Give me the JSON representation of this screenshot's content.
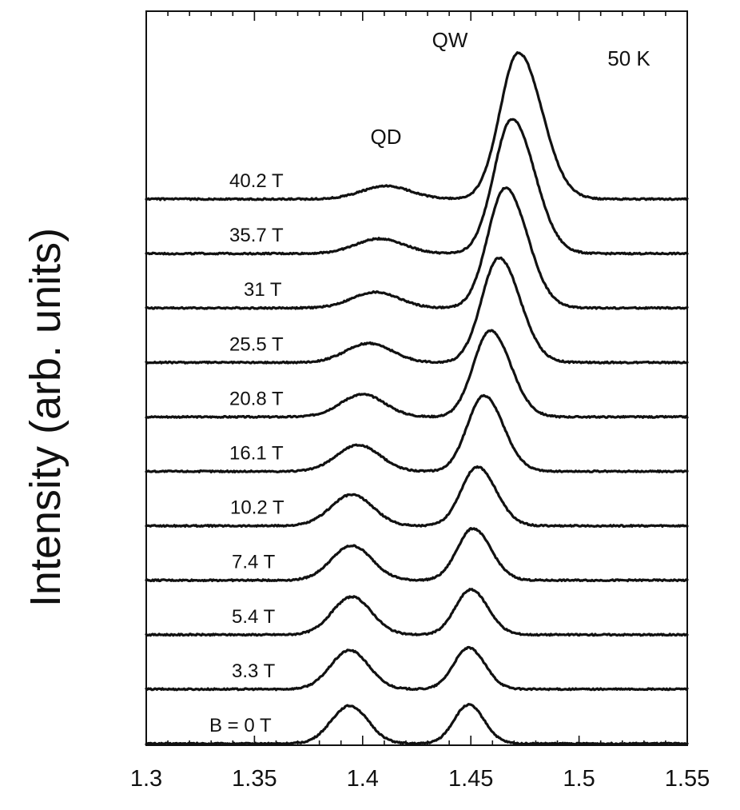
{
  "chart_data": {
    "type": "line",
    "title": "",
    "xlabel": "",
    "ylabel": "Intensity (arb. units)",
    "xlim": [
      1.3,
      1.55
    ],
    "x_ticks": [
      "1.3",
      "1.35",
      "1.4",
      "1.45",
      "1.5",
      "1.55"
    ],
    "y_ticks_labeled": false,
    "temperature_label": "50 K",
    "peak_labels": [
      "QD",
      "QW"
    ],
    "layout": "vertically offset stacked spectra, one per magnetic field",
    "series": [
      {
        "name": "B = 0 T",
        "qd_peak_x": 1.394,
        "qd_peak_height": 0.79,
        "qw_peak_x": 1.449,
        "qw_peak_height": 0.81
      },
      {
        "name": "3.3 T",
        "qd_peak_x": 1.394,
        "qd_peak_height": 0.81,
        "qw_peak_x": 1.449,
        "qw_peak_height": 0.86
      },
      {
        "name": "5.4 T",
        "qd_peak_x": 1.395,
        "qd_peak_height": 0.79,
        "qw_peak_x": 1.45,
        "qw_peak_height": 0.94
      },
      {
        "name": "7.4 T",
        "qd_peak_x": 1.395,
        "qd_peak_height": 0.72,
        "qw_peak_x": 1.451,
        "qw_peak_height": 1.08
      },
      {
        "name": "10.2 T",
        "qd_peak_x": 1.395,
        "qd_peak_height": 0.65,
        "qw_peak_x": 1.453,
        "qw_peak_height": 1.23
      },
      {
        "name": "16.1 T",
        "qd_peak_x": 1.398,
        "qd_peak_height": 0.55,
        "qw_peak_x": 1.456,
        "qw_peak_height": 1.58
      },
      {
        "name": "20.8 T",
        "qd_peak_x": 1.4,
        "qd_peak_height": 0.47,
        "qw_peak_x": 1.459,
        "qw_peak_height": 1.8
      },
      {
        "name": "25.5 T",
        "qd_peak_x": 1.403,
        "qd_peak_height": 0.4,
        "qw_peak_x": 1.463,
        "qw_peak_height": 2.18
      },
      {
        "name": "31 T",
        "qd_peak_x": 1.406,
        "qd_peak_height": 0.33,
        "qw_peak_x": 1.466,
        "qw_peak_height": 2.5
      },
      {
        "name": "35.7 T",
        "qd_peak_x": 1.408,
        "qd_peak_height": 0.31,
        "qw_peak_x": 1.469,
        "qw_peak_height": 2.8
      },
      {
        "name": "40.2 T",
        "qd_peak_x": 1.411,
        "qd_peak_height": 0.27,
        "qw_peak_x": 1.472,
        "qw_peak_height": 3.05
      }
    ]
  }
}
